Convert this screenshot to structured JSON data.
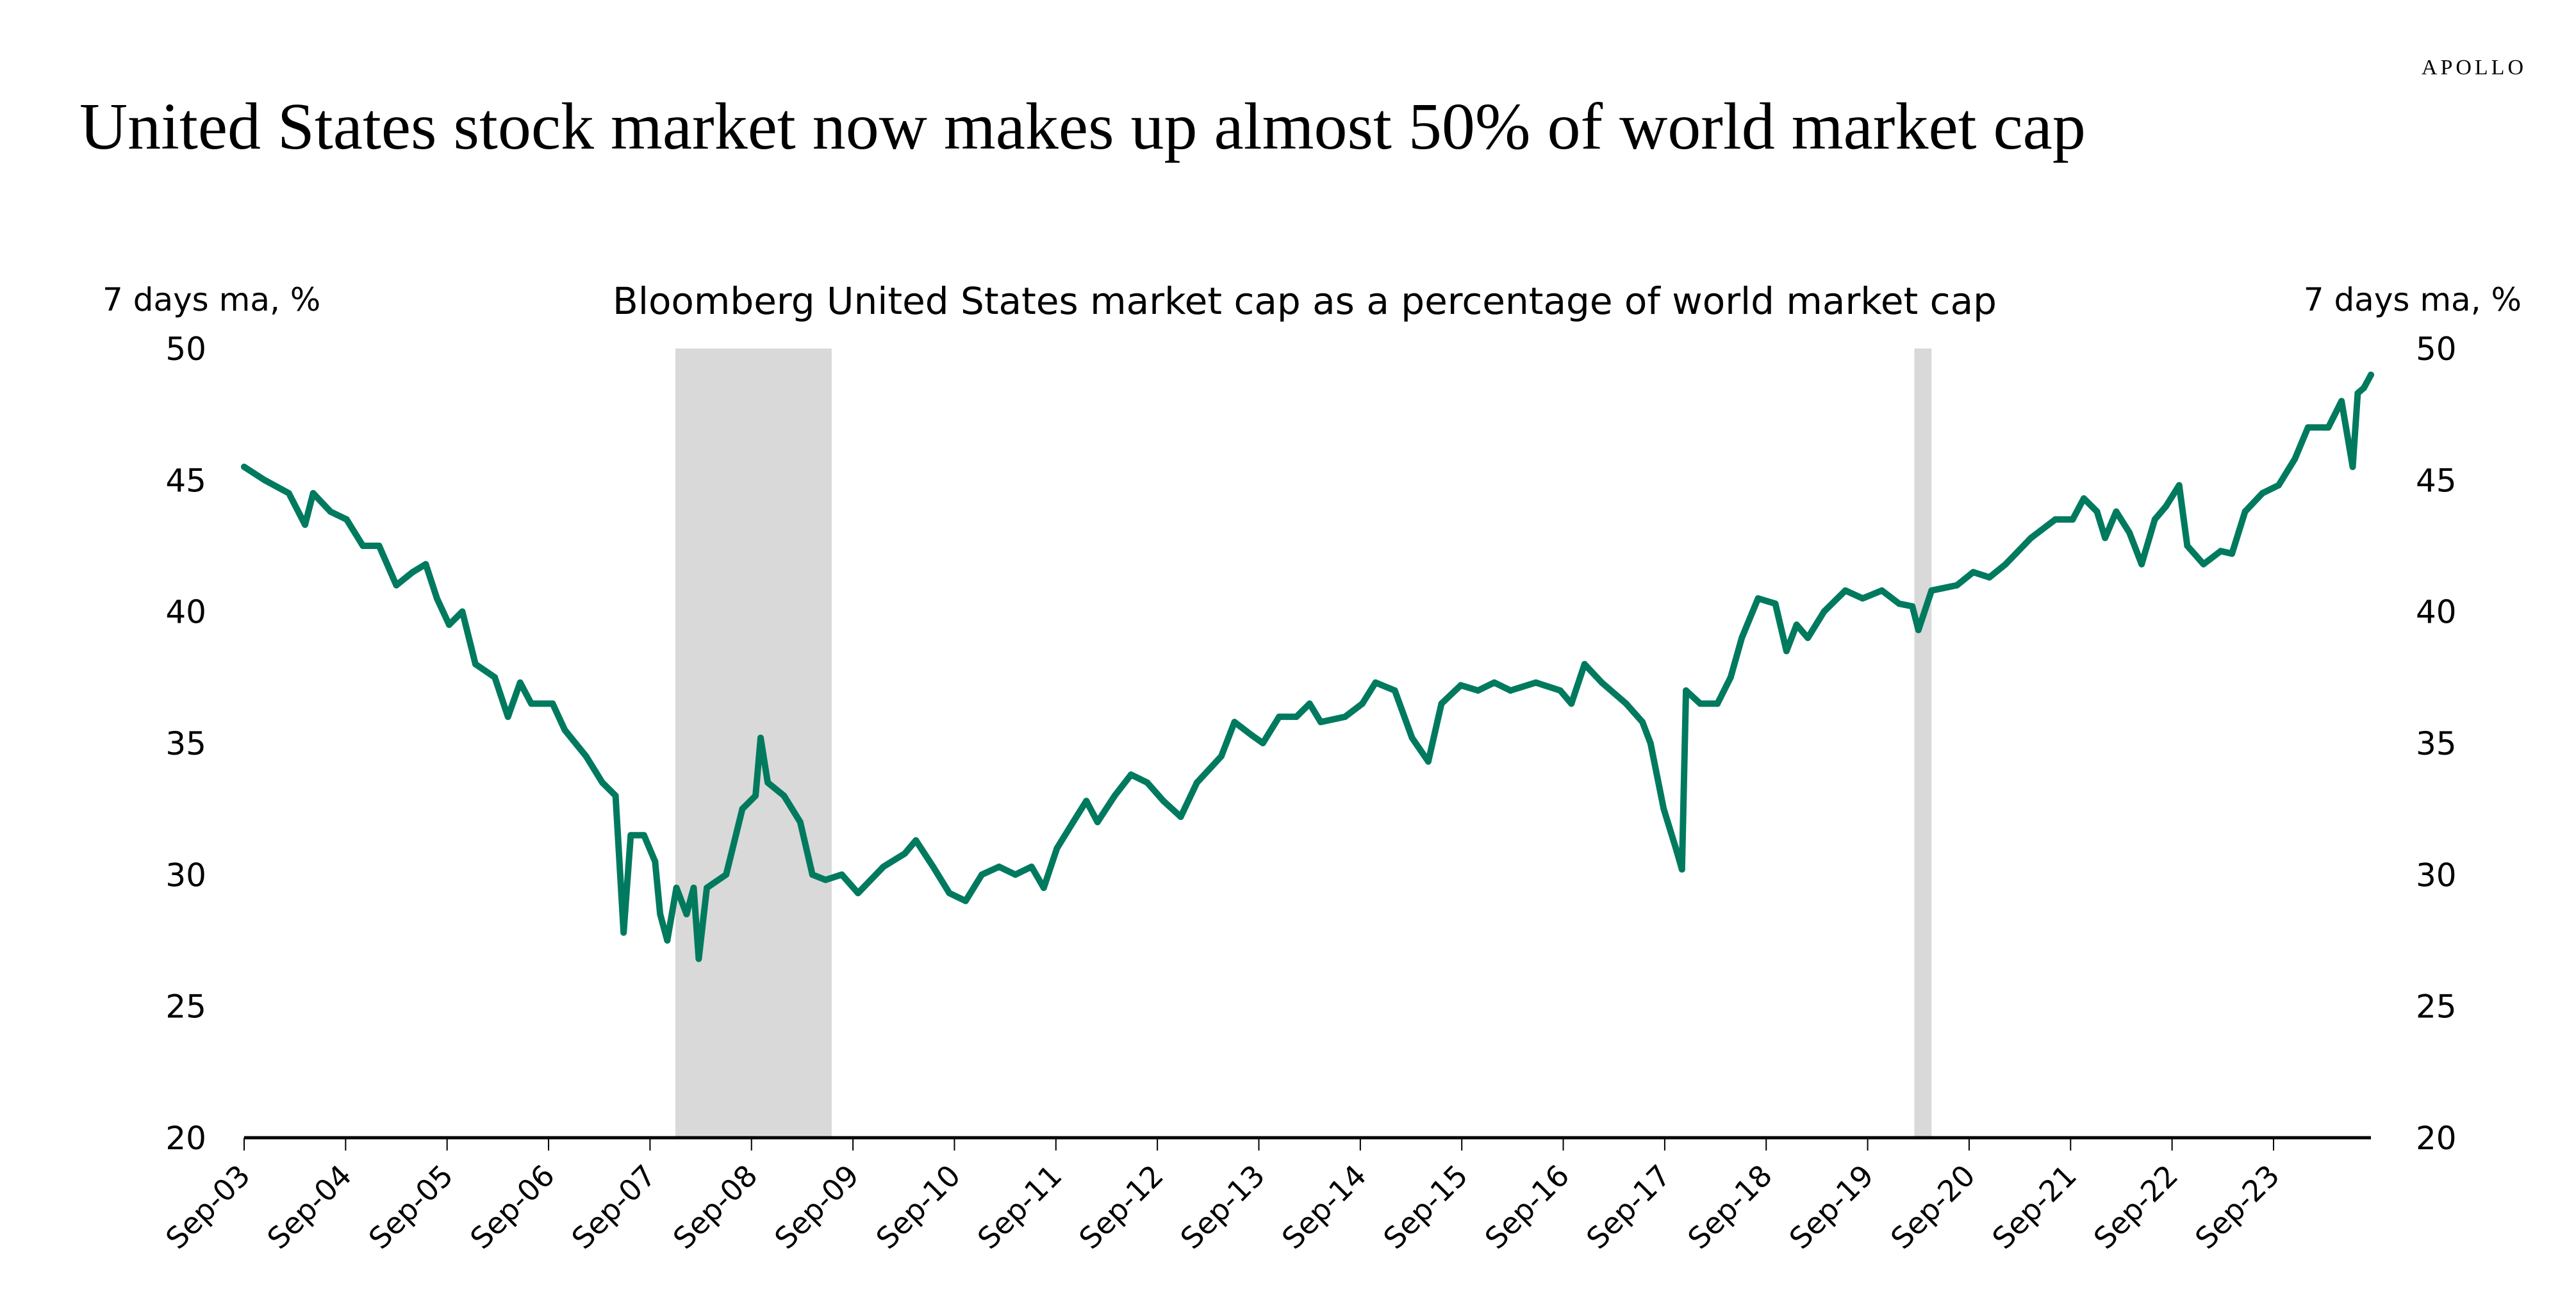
{
  "brand": "APOLLO",
  "title": "United States stock market now makes up almost 50% of world market cap",
  "chart_data": {
    "type": "line",
    "title": "Bloomberg United States market cap as a percentage of world market cap",
    "ylabel_left": "7 days ma, %",
    "ylabel_right": "7 days ma, %",
    "ylim": [
      20,
      50
    ],
    "yticks": [
      20,
      25,
      30,
      35,
      40,
      45,
      50
    ],
    "xlim": [
      2003.67,
      2024.63
    ],
    "xticks": [
      {
        "x": 2003.67,
        "label": "Sep-03"
      },
      {
        "x": 2004.67,
        "label": "Sep-04"
      },
      {
        "x": 2005.67,
        "label": "Sep-05"
      },
      {
        "x": 2006.67,
        "label": "Sep-06"
      },
      {
        "x": 2007.67,
        "label": "Sep-07"
      },
      {
        "x": 2008.67,
        "label": "Sep-08"
      },
      {
        "x": 2009.67,
        "label": "Sep-09"
      },
      {
        "x": 2010.67,
        "label": "Sep-10"
      },
      {
        "x": 2011.67,
        "label": "Sep-11"
      },
      {
        "x": 2012.67,
        "label": "Sep-12"
      },
      {
        "x": 2013.67,
        "label": "Sep-13"
      },
      {
        "x": 2014.67,
        "label": "Sep-14"
      },
      {
        "x": 2015.67,
        "label": "Sep-15"
      },
      {
        "x": 2016.67,
        "label": "Sep-16"
      },
      {
        "x": 2017.67,
        "label": "Sep-17"
      },
      {
        "x": 2018.67,
        "label": "Sep-18"
      },
      {
        "x": 2019.67,
        "label": "Sep-19"
      },
      {
        "x": 2020.67,
        "label": "Sep-20"
      },
      {
        "x": 2021.67,
        "label": "Sep-21"
      },
      {
        "x": 2022.67,
        "label": "Sep-22"
      },
      {
        "x": 2023.67,
        "label": "Sep-23"
      }
    ],
    "recessions": [
      [
        2007.92,
        2009.46
      ],
      [
        2020.13,
        2020.3
      ]
    ],
    "grid": false,
    "legend": "none",
    "colors": {
      "line": "#007A5E",
      "recession": "#D9D9D9",
      "axis": "#000000"
    },
    "series": [
      {
        "name": "US share of world market cap",
        "x": [
          2003.67,
          2003.87,
          2004.11,
          2004.27,
          2004.35,
          2004.52,
          2004.68,
          2004.84,
          2005.0,
          2005.17,
          2005.33,
          2005.46,
          2005.57,
          2005.69,
          2005.82,
          2005.95,
          2006.14,
          2006.27,
          2006.39,
          2006.5,
          2006.71,
          2006.83,
          2007.04,
          2007.2,
          2007.33,
          2007.41,
          2007.48,
          2007.61,
          2007.72,
          2007.77,
          2007.84,
          2007.93,
          2008.03,
          2008.1,
          2008.15,
          2008.23,
          2008.42,
          2008.58,
          2008.71,
          2008.76,
          2008.83,
          2008.99,
          2009.15,
          2009.27,
          2009.4,
          2009.56,
          2009.72,
          2009.97,
          2010.18,
          2010.29,
          2010.46,
          2010.62,
          2010.78,
          2010.94,
          2011.11,
          2011.27,
          2011.43,
          2011.55,
          2011.68,
          2011.84,
          2011.97,
          2012.08,
          2012.25,
          2012.41,
          2012.57,
          2012.73,
          2012.9,
          2013.06,
          2013.3,
          2013.43,
          2013.6,
          2013.71,
          2013.87,
          2014.04,
          2014.17,
          2014.28,
          2014.52,
          2014.69,
          2014.82,
          2015.01,
          2015.18,
          2015.34,
          2015.47,
          2015.66,
          2015.83,
          2015.99,
          2016.15,
          2016.4,
          2016.64,
          2016.75,
          2016.88,
          2017.05,
          2017.29,
          2017.45,
          2017.53,
          2017.66,
          2017.78,
          2017.84,
          2017.88,
          2018.02,
          2018.19,
          2018.32,
          2018.43,
          2018.59,
          2018.76,
          2018.87,
          2018.97,
          2019.08,
          2019.24,
          2019.45,
          2019.62,
          2019.81,
          2019.98,
          2020.11,
          2020.17,
          2020.3,
          2020.55,
          2020.71,
          2020.87,
          2021.03,
          2021.28,
          2021.52,
          2021.69,
          2021.8,
          2021.93,
          2022.01,
          2022.12,
          2022.25,
          2022.37,
          2022.5,
          2022.61,
          2022.74,
          2022.82,
          2022.98,
          2023.15,
          2023.26,
          2023.39,
          2023.56,
          2023.72,
          2023.88,
          2024.01,
          2024.21,
          2024.34,
          2024.45,
          2024.5,
          2024.56,
          2024.63
        ],
        "y": [
          45.5,
          45.0,
          44.5,
          43.3,
          44.5,
          43.8,
          43.5,
          42.5,
          42.5,
          41.0,
          41.5,
          41.8,
          40.5,
          39.5,
          40.0,
          38.0,
          37.5,
          36.0,
          37.3,
          36.5,
          36.5,
          35.5,
          34.5,
          33.5,
          33.0,
          27.8,
          31.5,
          31.5,
          30.5,
          28.5,
          27.5,
          29.5,
          28.5,
          29.5,
          26.8,
          29.5,
          30.0,
          32.5,
          33.0,
          35.2,
          33.5,
          33.0,
          32.0,
          30.0,
          29.8,
          30.0,
          29.3,
          30.3,
          30.8,
          31.3,
          30.3,
          29.3,
          29.0,
          30.0,
          30.3,
          30.0,
          30.3,
          29.5,
          31.0,
          32.0,
          32.8,
          32.0,
          33.0,
          33.8,
          33.5,
          32.8,
          32.2,
          33.5,
          34.5,
          35.8,
          35.3,
          35.0,
          36.0,
          36.0,
          36.5,
          35.8,
          36.0,
          36.5,
          37.3,
          37.0,
          35.2,
          34.3,
          36.5,
          37.2,
          37.0,
          37.3,
          37.0,
          37.3,
          37.0,
          36.5,
          38.0,
          37.3,
          36.5,
          35.8,
          35.0,
          32.5,
          31.0,
          30.2,
          37.0,
          36.5,
          36.5,
          37.5,
          39.0,
          40.5,
          40.3,
          38.5,
          39.5,
          39.0,
          40.0,
          40.8,
          40.5,
          40.8,
          40.3,
          40.2,
          39.3,
          40.8,
          41.0,
          41.5,
          41.3,
          41.8,
          42.8,
          43.5,
          43.5,
          44.3,
          43.8,
          42.8,
          43.8,
          43.0,
          41.8,
          43.5,
          44.0,
          44.8,
          42.5,
          41.8,
          42.3,
          42.2,
          43.8,
          44.5,
          44.8,
          45.8,
          47.0,
          47.0,
          48.0,
          45.5,
          48.3,
          48.5,
          49.0
        ]
      }
    ]
  }
}
